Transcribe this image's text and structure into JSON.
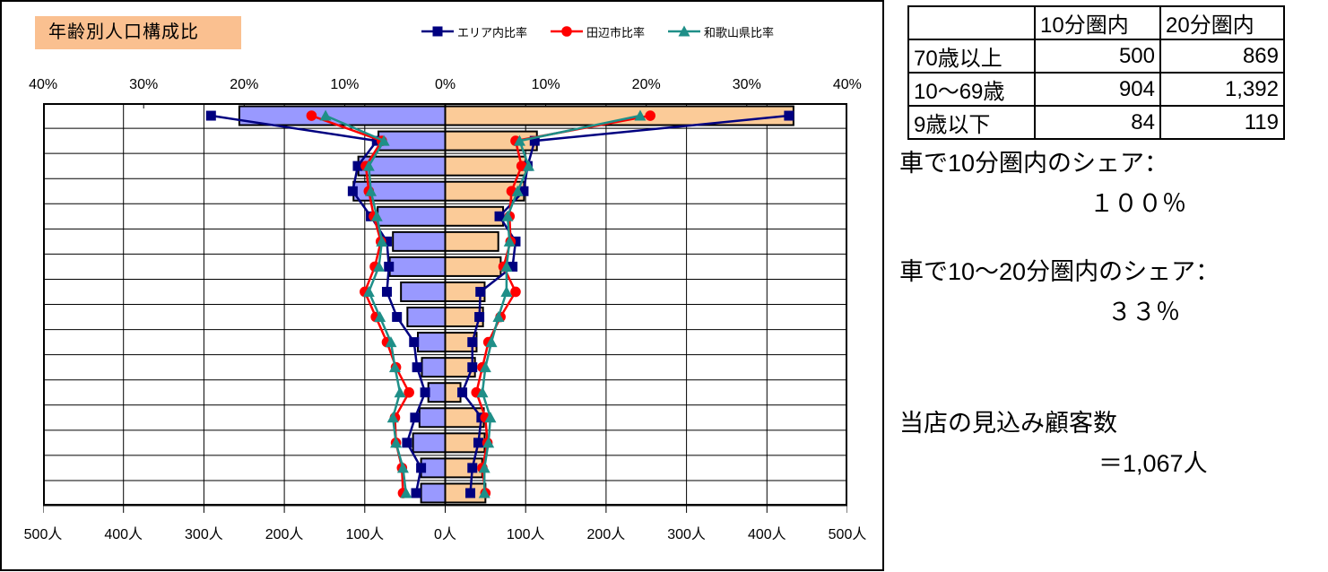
{
  "chart": {
    "title": "年齢別人口構成比",
    "title_bg": "#FAC090",
    "bar_color_left": "#9999FF",
    "bar_color_right": "#FBCB98",
    "legend": [
      {
        "label": "エリア内比率",
        "color": "#000080",
        "marker": "square"
      },
      {
        "label": "田辺市比率",
        "color": "#FF0000",
        "marker": "circle"
      },
      {
        "label": "和歌山県比率",
        "color": "#1F8F88",
        "marker": "triangle"
      }
    ]
  },
  "chart_data": {
    "type": "bar",
    "subtype": "population-pyramid-with-overlaid-lines",
    "title": "年齢別人口構成比",
    "orientation": "horizontal-mirrored",
    "grid": "on",
    "legend_position": "top",
    "top_axis": {
      "unit": "%",
      "max_each_side": 40,
      "labels": [
        "40%",
        "30%",
        "20%",
        "10%",
        "0%",
        "10%",
        "20%",
        "30%",
        "40%"
      ]
    },
    "bottom_axis": {
      "unit": "人",
      "max_each_side": 500,
      "labels": [
        "500人",
        "400人",
        "300人",
        "200人",
        "100人",
        "0人",
        "100人",
        "200人",
        "300人",
        "400人",
        "500人"
      ]
    },
    "bars_note": "bar lengths in persons (left bar, right bar) read on bottom axis",
    "lines_note": "line values in percent (left, right) read on top axis",
    "series": [
      {
        "name": "エリア内比率",
        "key": "area_pct",
        "color": "#000080",
        "marker": "square"
      },
      {
        "name": "田辺市比率",
        "key": "tanabe_pct",
        "color": "#FF0000",
        "marker": "circle"
      },
      {
        "name": "和歌山県比率",
        "key": "wakayama_pct",
        "color": "#1F8F88",
        "marker": "triangle"
      }
    ],
    "rows": [
      {
        "bar": [
          256,
          433
        ],
        "area_pct": [
          23.3,
          34.2
        ],
        "tanabe_pct": [
          13.3,
          20.4
        ],
        "wakayama_pct": [
          11.9,
          19.4
        ]
      },
      {
        "bar": [
          83,
          114
        ],
        "area_pct": [
          6.8,
          8.9
        ],
        "tanabe_pct": [
          6.3,
          7.0
        ],
        "wakayama_pct": [
          6.1,
          7.4
        ]
      },
      {
        "bar": [
          108,
          100
        ],
        "area_pct": [
          8.7,
          8.2
        ],
        "tanabe_pct": [
          7.9,
          7.6
        ],
        "wakayama_pct": [
          7.6,
          8.3
        ]
      },
      {
        "bar": [
          114,
          98
        ],
        "area_pct": [
          9.2,
          7.8
        ],
        "tanabe_pct": [
          7.6,
          6.6
        ],
        "wakayama_pct": [
          7.4,
          7.2
        ]
      },
      {
        "bar": [
          84,
          72
        ],
        "area_pct": [
          7.4,
          5.4
        ],
        "tanabe_pct": [
          7.1,
          6.4
        ],
        "wakayama_pct": [
          6.8,
          6.2
        ]
      },
      {
        "bar": [
          65,
          66
        ],
        "area_pct": [
          5.8,
          7.0
        ],
        "tanabe_pct": [
          6.4,
          6.5
        ],
        "wakayama_pct": [
          6.3,
          6.4
        ]
      },
      {
        "bar": [
          69,
          69
        ],
        "area_pct": [
          5.6,
          6.7
        ],
        "tanabe_pct": [
          7.0,
          5.8
        ],
        "wakayama_pct": [
          6.6,
          6.1
        ]
      },
      {
        "bar": [
          55,
          49
        ],
        "area_pct": [
          5.8,
          3.5
        ],
        "tanabe_pct": [
          8.0,
          7.0
        ],
        "wakayama_pct": [
          7.6,
          6.1
        ]
      },
      {
        "bar": [
          47,
          47
        ],
        "area_pct": [
          4.8,
          3.4
        ],
        "tanabe_pct": [
          6.9,
          5.5
        ],
        "wakayama_pct": [
          6.5,
          5.3
        ]
      },
      {
        "bar": [
          34,
          39
        ],
        "area_pct": [
          3.1,
          2.7
        ],
        "tanabe_pct": [
          5.8,
          4.3
        ],
        "wakayama_pct": [
          5.4,
          4.6
        ]
      },
      {
        "bar": [
          29,
          37
        ],
        "area_pct": [
          2.8,
          2.7
        ],
        "tanabe_pct": [
          4.9,
          3.7
        ],
        "wakayama_pct": [
          5.0,
          4.0
        ]
      },
      {
        "bar": [
          21,
          19
        ],
        "area_pct": [
          2.0,
          1.7
        ],
        "tanabe_pct": [
          3.6,
          3.1
        ],
        "wakayama_pct": [
          4.5,
          3.7
        ]
      },
      {
        "bar": [
          32,
          48
        ],
        "area_pct": [
          3.0,
          3.6
        ],
        "tanabe_pct": [
          5.0,
          4.0
        ],
        "wakayama_pct": [
          5.2,
          4.5
        ]
      },
      {
        "bar": [
          40,
          49
        ],
        "area_pct": [
          3.8,
          3.3
        ],
        "tanabe_pct": [
          4.9,
          4.2
        ],
        "wakayama_pct": [
          4.9,
          4.3
        ]
      },
      {
        "bar": [
          30,
          46
        ],
        "area_pct": [
          2.4,
          2.7
        ],
        "tanabe_pct": [
          4.3,
          3.7
        ],
        "wakayama_pct": [
          4.2,
          3.9
        ]
      },
      {
        "bar": [
          30,
          50
        ],
        "area_pct": [
          2.9,
          2.5
        ],
        "tanabe_pct": [
          4.2,
          4.0
        ],
        "wakayama_pct": [
          3.9,
          3.9
        ]
      }
    ]
  },
  "side": {
    "table": {
      "headers": [
        "",
        "10分圏内",
        "20分圏内"
      ],
      "rows": [
        [
          "70歳以上",
          "500",
          "869"
        ],
        [
          "10～69歳",
          "904",
          "1,392"
        ],
        [
          "9歳以下",
          "84",
          "119"
        ]
      ]
    },
    "notes": [
      {
        "line1": "車で10分圏内のシェア：",
        "line2": "１００％"
      },
      {
        "line1": "車で10～20分圏内のシェア：",
        "line2": "３３％"
      },
      {
        "line1": "当店の見込み顧客数",
        "line2": "＝1,067人"
      }
    ]
  }
}
